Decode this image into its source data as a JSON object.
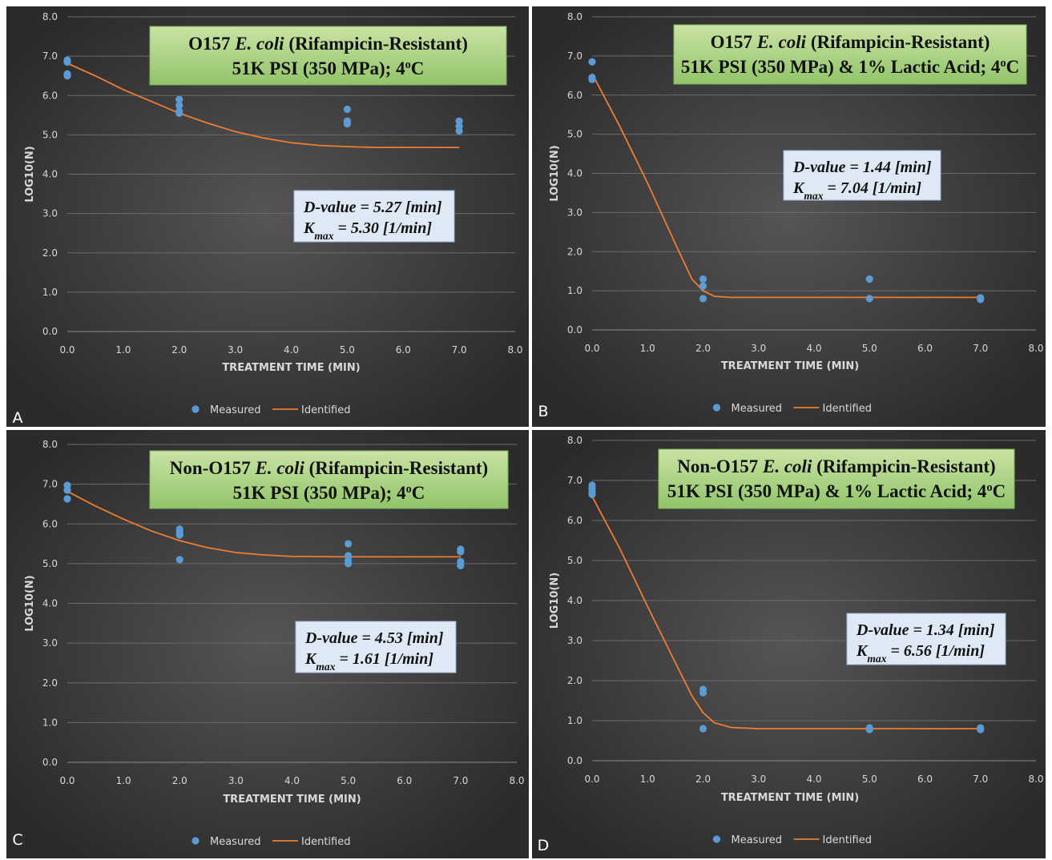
{
  "figure": {
    "panels": [
      {
        "letter": "A",
        "title_line1": [
          "O157 ",
          "E. coli",
          " (Rifampicin-Resistant)"
        ],
        "title_line2": [
          "51K PSI (350 MPa); 4",
          "o",
          "C"
        ],
        "dvalue": "D-value = 5.27 [min]",
        "kmax": [
          "K",
          "max",
          " = 5.30 [1/min]"
        ]
      },
      {
        "letter": "B",
        "title_line1": [
          "O157 ",
          "E. coli",
          " (Rifampicin-Resistant)"
        ],
        "title_line2": [
          "51K PSI (350 MPa) & 1% Lactic Acid; 4",
          "o",
          "C"
        ],
        "dvalue": "D-value = 1.44 [min]",
        "kmax": [
          "K",
          "max",
          " = 7.04 [1/min]"
        ]
      },
      {
        "letter": "C",
        "title_line1": [
          "Non-O157 ",
          "E. coli",
          " (Rifampicin-Resistant)"
        ],
        "title_line2": [
          "51K PSI (350 MPa); 4",
          "o",
          "C"
        ],
        "dvalue": "D-value = 4.53 [min]",
        "kmax": [
          "K",
          "max",
          " = 1.61 [1/min]"
        ]
      },
      {
        "letter": "D",
        "title_line1": [
          "Non-O157 ",
          "E. coli",
          " (Rifampicin-Resistant)"
        ],
        "title_line2": [
          "51K PSI (350 MPa) & 1% Lactic Acid; 4",
          "o",
          "C"
        ],
        "dvalue": "D-value = 1.34 [min]",
        "kmax": [
          "K",
          "max",
          " = 6.56 [1/min]"
        ]
      }
    ]
  },
  "chart_data": [
    {
      "type": "scatter",
      "title": "O157 E. coli (Rifampicin-Resistant) 51K PSI (350 MPa); 4oC",
      "xlabel": "TREATMENT TIME (MIN)",
      "ylabel": "LOG10(N)",
      "xlim": [
        0,
        8
      ],
      "ylim": [
        0,
        8
      ],
      "xticks": [
        "0.0",
        "1.0",
        "2.0",
        "3.0",
        "4.0",
        "5.0",
        "6.0",
        "7.0",
        "8.0"
      ],
      "yticks": [
        "0.0",
        "1.0",
        "2.0",
        "3.0",
        "4.0",
        "5.0",
        "6.0",
        "7.0",
        "8.0"
      ],
      "grid": true,
      "legend": "bottom",
      "colors": {
        "measured": "#5b9bd5",
        "identified": "#ed7d31"
      },
      "series": [
        {
          "name": "Measured",
          "kind": "points",
          "x": [
            0,
            0,
            0,
            0,
            2,
            2,
            2,
            2,
            5,
            5,
            5,
            7,
            7,
            7
          ],
          "y": [
            6.9,
            6.85,
            6.55,
            6.5,
            5.9,
            5.75,
            5.6,
            5.55,
            5.65,
            5.35,
            5.28,
            5.35,
            5.22,
            5.1
          ]
        },
        {
          "name": "Identified",
          "kind": "line",
          "x": [
            0,
            0.5,
            1,
            1.5,
            2,
            2.5,
            3,
            3.5,
            4,
            4.5,
            5,
            5.5,
            6,
            6.5,
            7
          ],
          "y": [
            6.82,
            6.5,
            6.15,
            5.85,
            5.55,
            5.3,
            5.08,
            4.92,
            4.8,
            4.73,
            4.7,
            4.68,
            4.68,
            4.68,
            4.68
          ]
        }
      ],
      "annotations": [
        "D-value = 5.27 [min]",
        "Kmax = 5.30 [1/min]"
      ]
    },
    {
      "type": "scatter",
      "title": "O157 E. coli (Rifampicin-Resistant) 51K PSI (350 MPa) & 1% Lactic Acid; 4oC",
      "xlabel": "TREATMENT TIME (MIN)",
      "ylabel": "LOG10(N)",
      "xlim": [
        0,
        8
      ],
      "ylim": [
        0,
        8
      ],
      "xticks": [
        "0.0",
        "1.0",
        "2.0",
        "3.0",
        "4.0",
        "5.0",
        "6.0",
        "7.0",
        "8.0"
      ],
      "yticks": [
        "0.0",
        "1.0",
        "2.0",
        "3.0",
        "4.0",
        "5.0",
        "6.0",
        "7.0",
        "8.0"
      ],
      "grid": true,
      "legend": "bottom",
      "colors": {
        "measured": "#5b9bd5",
        "identified": "#ed7d31"
      },
      "series": [
        {
          "name": "Measured",
          "kind": "points",
          "x": [
            0,
            0,
            0,
            2,
            2,
            2,
            5,
            5,
            7,
            7
          ],
          "y": [
            6.85,
            6.45,
            6.4,
            1.3,
            1.12,
            0.8,
            1.3,
            0.8,
            0.82,
            0.78
          ]
        },
        {
          "name": "Identified",
          "kind": "line",
          "x": [
            0,
            0.5,
            1,
            1.5,
            1.8,
            2,
            2.2,
            2.5,
            3,
            4,
            5,
            6,
            7
          ],
          "y": [
            6.55,
            5.2,
            3.75,
            2.2,
            1.3,
            1.0,
            0.86,
            0.83,
            0.83,
            0.83,
            0.83,
            0.83,
            0.83
          ]
        }
      ],
      "annotations": [
        "D-value = 1.44 [min]",
        "Kmax = 7.04 [1/min]"
      ]
    },
    {
      "type": "scatter",
      "title": "Non-O157 E. coli (Rifampicin-Resistant) 51K PSI (350 MPa); 4oC",
      "xlabel": "TREATMENT TIME (MIN)",
      "ylabel": "LOG10(N)",
      "xlim": [
        0,
        8
      ],
      "ylim": [
        0,
        8
      ],
      "xticks": [
        "0.0",
        "1.0",
        "2.0",
        "3.0",
        "4.0",
        "5.0",
        "6.0",
        "7.0",
        "8.0"
      ],
      "yticks": [
        "0.0",
        "1.0",
        "2.0",
        "3.0",
        "4.0",
        "5.0",
        "6.0",
        "7.0",
        "8.0"
      ],
      "grid": true,
      "legend": "bottom",
      "colors": {
        "measured": "#5b9bd5",
        "identified": "#ed7d31"
      },
      "series": [
        {
          "name": "Measured",
          "kind": "points",
          "x": [
            0,
            0,
            0,
            2,
            2,
            2,
            2,
            5,
            5,
            5,
            5,
            7,
            7,
            7,
            7
          ],
          "y": [
            6.97,
            6.85,
            6.63,
            5.87,
            5.78,
            5.72,
            5.1,
            5.5,
            5.2,
            5.08,
            5.0,
            5.36,
            5.3,
            5.05,
            4.95
          ]
        },
        {
          "name": "Identified",
          "kind": "line",
          "x": [
            0,
            0.5,
            1,
            1.5,
            2,
            2.5,
            3,
            3.5,
            4,
            5,
            6,
            7
          ],
          "y": [
            6.82,
            6.45,
            6.12,
            5.82,
            5.58,
            5.4,
            5.28,
            5.22,
            5.18,
            5.17,
            5.17,
            5.17
          ]
        }
      ],
      "annotations": [
        "D-value = 4.53 [min]",
        "Kmax = 1.61 [1/min]"
      ]
    },
    {
      "type": "scatter",
      "title": "Non-O157 E. coli (Rifampicin-Resistant) 51K PSI (350 MPa) & 1% Lactic Acid; 4oC",
      "xlabel": "TREATMENT TIME (MIN)",
      "ylabel": "LOG10(N)",
      "xlim": [
        0,
        8
      ],
      "ylim": [
        0,
        8
      ],
      "xticks": [
        "0.0",
        "1.0",
        "2.0",
        "3.0",
        "4.0",
        "5.0",
        "6.0",
        "7.0",
        "8.0"
      ],
      "yticks": [
        "0.0",
        "1.0",
        "2.0",
        "3.0",
        "4.0",
        "5.0",
        "6.0",
        "7.0",
        "8.0"
      ],
      "grid": true,
      "legend": "bottom",
      "colors": {
        "measured": "#5b9bd5",
        "identified": "#ed7d31"
      },
      "series": [
        {
          "name": "Measured",
          "kind": "points",
          "x": [
            0,
            0,
            0,
            0,
            2,
            2,
            2,
            5,
            5,
            7,
            7
          ],
          "y": [
            6.88,
            6.8,
            6.72,
            6.65,
            1.78,
            1.7,
            0.8,
            0.82,
            0.78,
            0.82,
            0.78
          ]
        },
        {
          "name": "Identified",
          "kind": "line",
          "x": [
            0,
            0.5,
            1,
            1.5,
            1.8,
            2,
            2.2,
            2.5,
            3,
            4,
            5,
            6,
            7
          ],
          "y": [
            6.6,
            5.3,
            3.85,
            2.45,
            1.62,
            1.2,
            0.95,
            0.83,
            0.8,
            0.8,
            0.8,
            0.8,
            0.8
          ]
        }
      ],
      "annotations": [
        "D-value = 1.34 [min]",
        "Kmax = 6.56 [1/min]"
      ]
    }
  ]
}
